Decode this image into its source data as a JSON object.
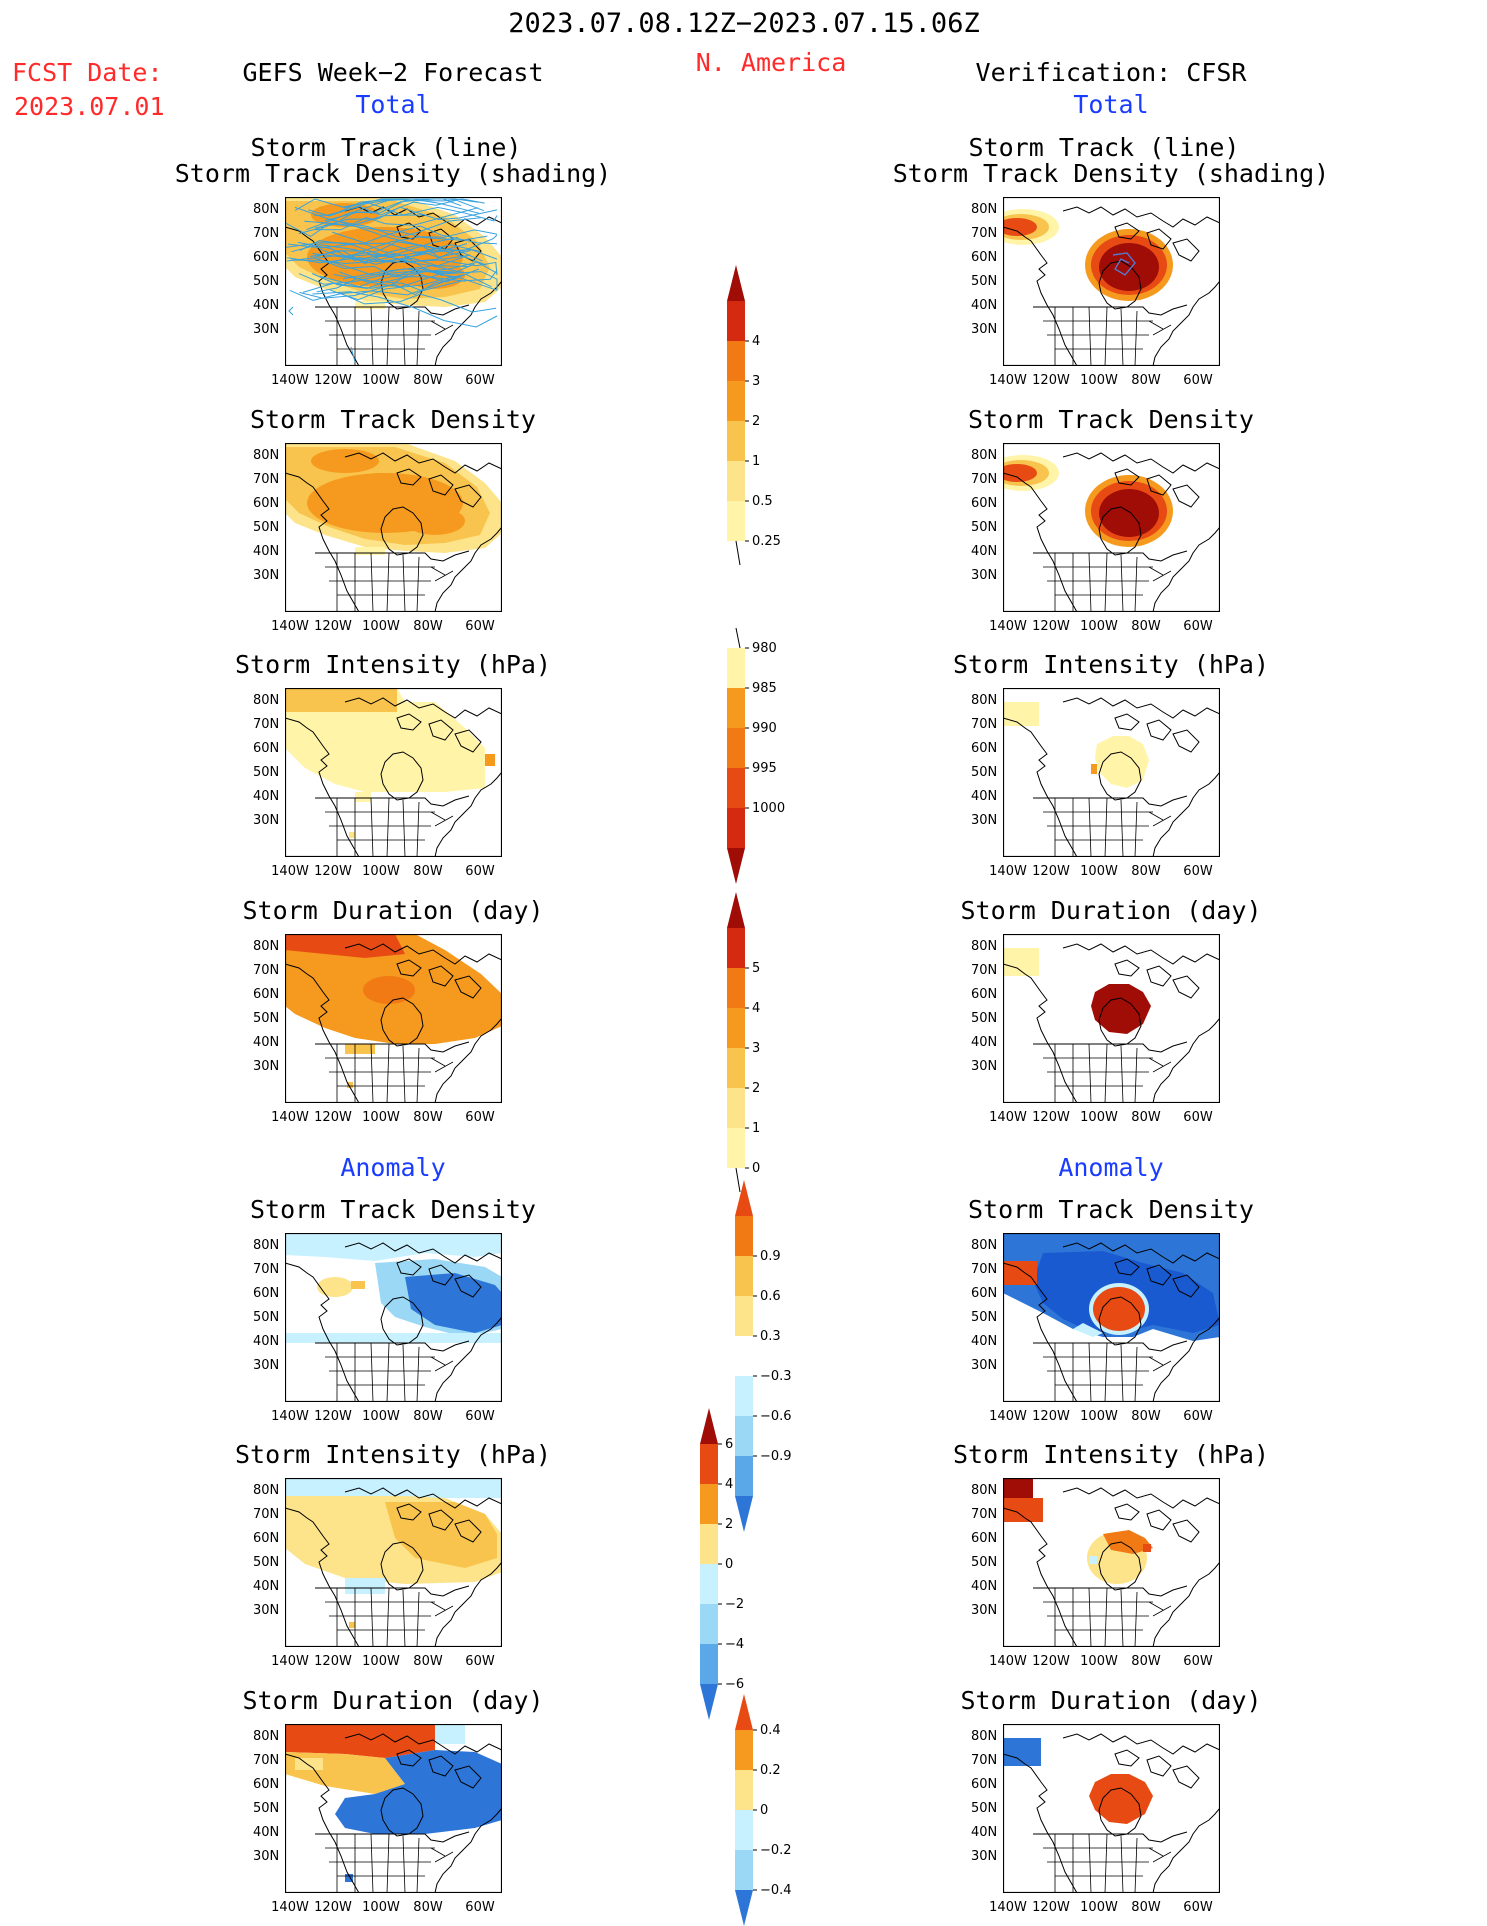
{
  "header": {
    "period": "2023.07.08.12Z−2023.07.15.06Z",
    "region": "N. America",
    "fcst_label": "FCST Date:",
    "fcst_date": "2023.07.01",
    "left_title": "GEFS Week−2 Forecast",
    "right_title": "Verification: CFSR",
    "total_label": "Total",
    "anomaly_label": "Anomaly"
  },
  "titles": {
    "track_line_1": "Storm Track (line)",
    "track_line_2": "Storm Track Density (shading)",
    "density": "Storm Track Density",
    "intensity": "Storm Intensity (hPa)",
    "duration": "Storm Duration (day)"
  },
  "axes": {
    "lat": [
      "80N",
      "70N",
      "60N",
      "50N",
      "40N",
      "30N"
    ],
    "lon": [
      "140W",
      "120W",
      "100W",
      "80W",
      "60W"
    ]
  },
  "colorbars": {
    "density_total": [
      "0.25",
      "0.5",
      "1",
      "2",
      "3",
      "4"
    ],
    "intensity_total": [
      "980",
      "985",
      "990",
      "995",
      "1000"
    ],
    "duration_total": [
      "0",
      "1",
      "2",
      "3",
      "4",
      "5"
    ],
    "density_anom": [
      "−0.9",
      "−0.6",
      "−0.3",
      "0.3",
      "0.6",
      "0.9"
    ],
    "intensity_anom": [
      "−6",
      "−4",
      "−2",
      "0",
      "2",
      "4",
      "6"
    ],
    "duration_anom": [
      "−0.4",
      "−0.2",
      "0",
      "0.2",
      "0.4"
    ]
  },
  "colors": {
    "y1": "#fff4a8",
    "y2": "#fde48a",
    "o1": "#f9c44d",
    "o2": "#f59a1e",
    "o3": "#f27a14",
    "r1": "#e84a14",
    "r2": "#d42a10",
    "r3": "#a00c06",
    "b1": "#c7f1ff",
    "b2": "#9ad8f5",
    "b3": "#5aa8e8",
    "b4": "#2d76d8",
    "b5": "#1a5ad0",
    "track": "#36a2de"
  }
}
